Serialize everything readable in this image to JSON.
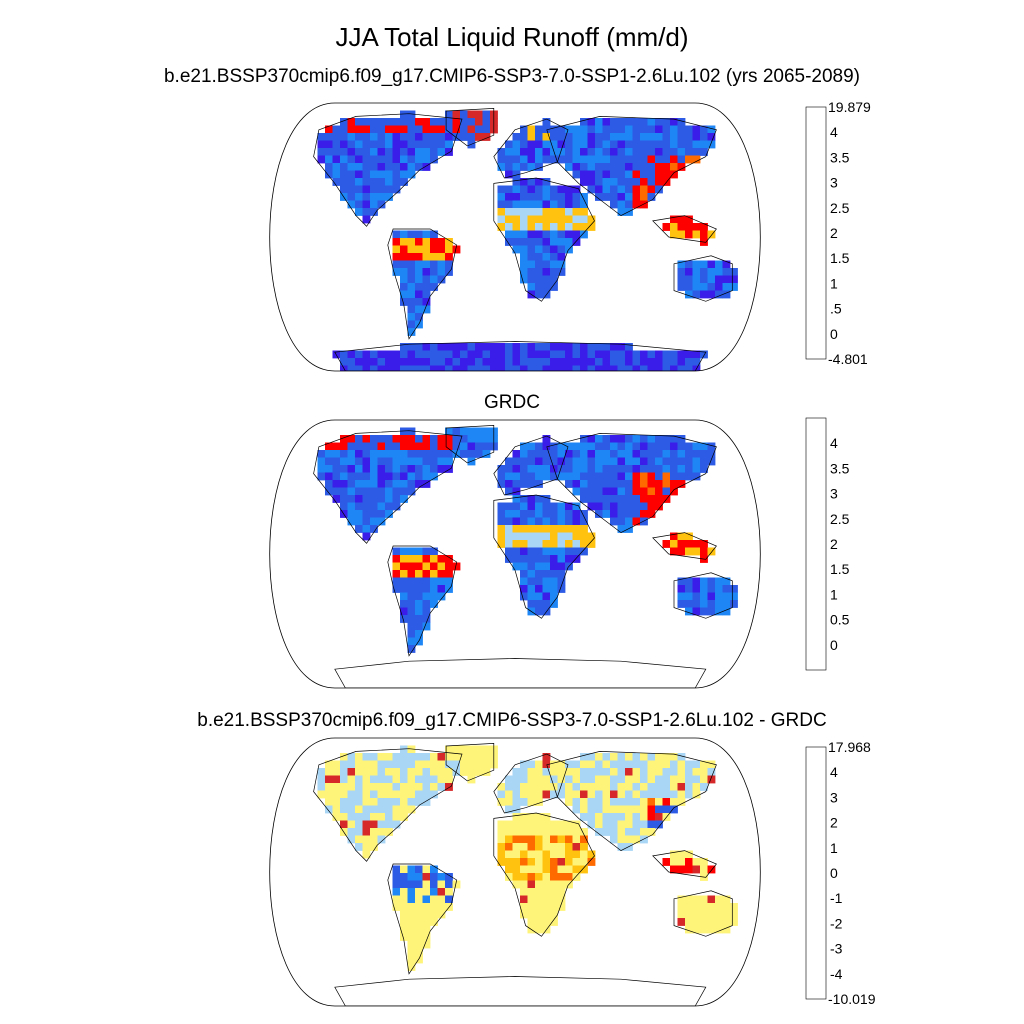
{
  "title": "JJA Total Liquid Runoff (mm/d)",
  "panels": [
    {
      "subtitle": "b.e21.BSSP370cmip6.f09_g17.CMIP6-SSP3-7.0-SSP1-2.6Lu.102 (yrs 2065-2089)",
      "colorbar": {
        "labels": [
          "19.879",
          "4",
          "3.5",
          "3",
          "2.5",
          "2",
          "1.5",
          "1",
          ".5",
          "0",
          "-4.801"
        ],
        "colors": [
          "#d62828",
          "#ff0000",
          "#ff6a00",
          "#ffc20e",
          "#fff47a",
          "#a9d6f5",
          "#16b8f2",
          "#1f86f5",
          "#2d5be6",
          "#3a1de8"
        ]
      }
    },
    {
      "subtitle": "GRDC",
      "colorbar": {
        "labels": [
          "4",
          "3.5",
          "3",
          "2.5",
          "2",
          "1.5",
          "1",
          "0.5",
          "0"
        ],
        "colors": [
          "#d62828",
          "#ff0000",
          "#ff6a00",
          "#ffc20e",
          "#fff47a",
          "#a9d6f5",
          "#16b8f2",
          "#1f86f5",
          "#2d5be6",
          "#3a1de8"
        ]
      }
    },
    {
      "subtitle": "b.e21.BSSP370cmip6.f09_g17.CMIP6-SSP3-7.0-SSP1-2.6Lu.102 - GRDC",
      "colorbar": {
        "labels": [
          "17.968",
          "4",
          "3",
          "2",
          "1",
          "0",
          "-1",
          "-2",
          "-3",
          "-4",
          "-10.019"
        ],
        "colors": [
          "#d62828",
          "#ff0000",
          "#ff6a00",
          "#ffc20e",
          "#fff47a",
          "#a9d6f5",
          "#16b8f2",
          "#1f86f5",
          "#2d5be6",
          "#3a1de8"
        ]
      }
    }
  ]
}
